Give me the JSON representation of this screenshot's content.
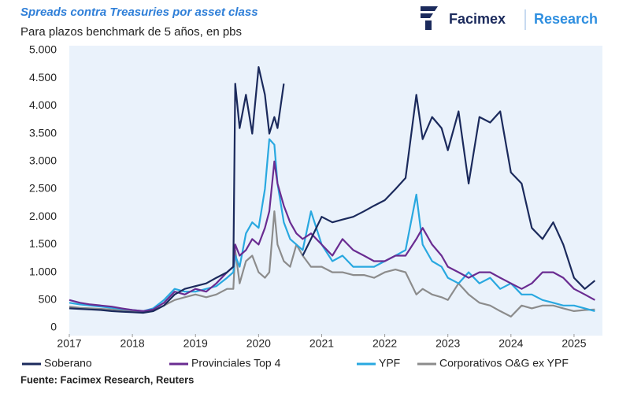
{
  "chart_data": {
    "type": "line",
    "title": "Spreads contra Treasuries por asset class",
    "subtitle": "Para plazos benchmark de 5 años, en pbs",
    "brand": "Facimex",
    "brand_section": "Research",
    "source": "Fuente: Facimex Research, Reuters",
    "x": [
      2017.0,
      2017.17,
      2017.33,
      2017.5,
      2017.67,
      2017.83,
      2018.0,
      2018.17,
      2018.33,
      2018.5,
      2018.67,
      2018.83,
      2019.0,
      2019.17,
      2019.33,
      2019.5,
      2019.6,
      2019.63,
      2019.7,
      2019.8,
      2019.9,
      2020.0,
      2020.1,
      2020.17,
      2020.25,
      2020.3,
      2020.4,
      2020.5,
      2020.6,
      2020.7,
      2020.83,
      2021.0,
      2021.17,
      2021.33,
      2021.5,
      2021.67,
      2021.83,
      2022.0,
      2022.17,
      2022.33,
      2022.5,
      2022.6,
      2022.75,
      2022.9,
      2023.0,
      2023.17,
      2023.33,
      2023.5,
      2023.67,
      2023.83,
      2024.0,
      2024.17,
      2024.33,
      2024.5,
      2024.67,
      2024.83,
      2025.0,
      2025.17,
      2025.33
    ],
    "series": [
      {
        "name": "Soberano",
        "color": "#1b2a5c",
        "values": [
          350,
          340,
          330,
          320,
          300,
          290,
          280,
          270,
          300,
          400,
          600,
          700,
          750,
          800,
          900,
          1000,
          1100,
          4400,
          3600,
          4200,
          3500,
          4700,
          4200,
          3500,
          3800,
          3600,
          4400,
          null,
          null,
          1300,
          1600,
          2000,
          1900,
          1950,
          2000,
          2100,
          2200,
          2300,
          2500,
          2700,
          4200,
          3400,
          3800,
          3600,
          3200,
          3900,
          2600,
          3800,
          3700,
          3900,
          2800,
          2600,
          1800,
          1600,
          1900,
          1500,
          900,
          700,
          850
        ]
      },
      {
        "name": "Provinciales Top 4",
        "color": "#6a2c91",
        "values": [
          500,
          450,
          420,
          400,
          380,
          350,
          320,
          300,
          330,
          450,
          650,
          600,
          700,
          650,
          800,
          1000,
          1100,
          1500,
          1300,
          1400,
          1600,
          1500,
          1800,
          2100,
          3000,
          2600,
          2200,
          1900,
          1700,
          1600,
          1700,
          1500,
          1300,
          1600,
          1400,
          1300,
          1200,
          1200,
          1300,
          1300,
          1600,
          1800,
          1500,
          1300,
          1100,
          1000,
          900,
          1000,
          1000,
          900,
          800,
          700,
          800,
          1000,
          1000,
          900,
          700,
          600,
          500
        ]
      },
      {
        "name": "YPF",
        "color": "#29a8e0",
        "values": [
          450,
          420,
          400,
          380,
          360,
          340,
          320,
          300,
          350,
          500,
          700,
          650,
          650,
          700,
          750,
          900,
          1000,
          1300,
          1100,
          1700,
          1900,
          1800,
          2500,
          3400,
          3300,
          2600,
          1900,
          1600,
          1500,
          1400,
          2100,
          1500,
          1200,
          1300,
          1100,
          1100,
          1100,
          1200,
          1300,
          1400,
          2400,
          1500,
          1200,
          1100,
          900,
          800,
          1000,
          800,
          900,
          700,
          800,
          600,
          600,
          500,
          450,
          400,
          400,
          350,
          300
        ]
      },
      {
        "name": "Corporativos O&G ex YPF",
        "color": "#8c8c8c",
        "values": [
          380,
          360,
          350,
          340,
          330,
          320,
          300,
          280,
          300,
          400,
          500,
          550,
          600,
          550,
          600,
          700,
          700,
          1400,
          800,
          1200,
          1300,
          1000,
          900,
          1000,
          2100,
          1500,
          1200,
          1100,
          1500,
          1300,
          1100,
          1100,
          1000,
          1000,
          950,
          950,
          900,
          1000,
          1050,
          1000,
          600,
          700,
          600,
          550,
          500,
          800,
          600,
          450,
          400,
          300,
          200,
          400,
          350,
          400,
          400,
          350,
          300,
          320,
          330
        ]
      }
    ],
    "xlim": [
      2017,
      2025.45
    ],
    "xticks": [
      2017,
      2018,
      2019,
      2020,
      2021,
      2022,
      2023,
      2024,
      2025
    ],
    "ylim": [
      0,
      5000
    ],
    "yticks": [
      0,
      500,
      {
        "value": 1000,
        "label": "1.000"
      },
      {
        "value": 1500,
        "label": "1.500"
      },
      {
        "value": 2000,
        "label": "2.000"
      },
      {
        "value": 2500,
        "label": "2.500"
      },
      {
        "value": 3000,
        "label": "3.000"
      },
      {
        "value": 3500,
        "label": "3.500"
      },
      {
        "value": 4000,
        "label": "4.000"
      },
      {
        "value": 4500,
        "label": "4.500"
      },
      {
        "value": 5000,
        "label": "5.000"
      }
    ],
    "grid": false
  }
}
